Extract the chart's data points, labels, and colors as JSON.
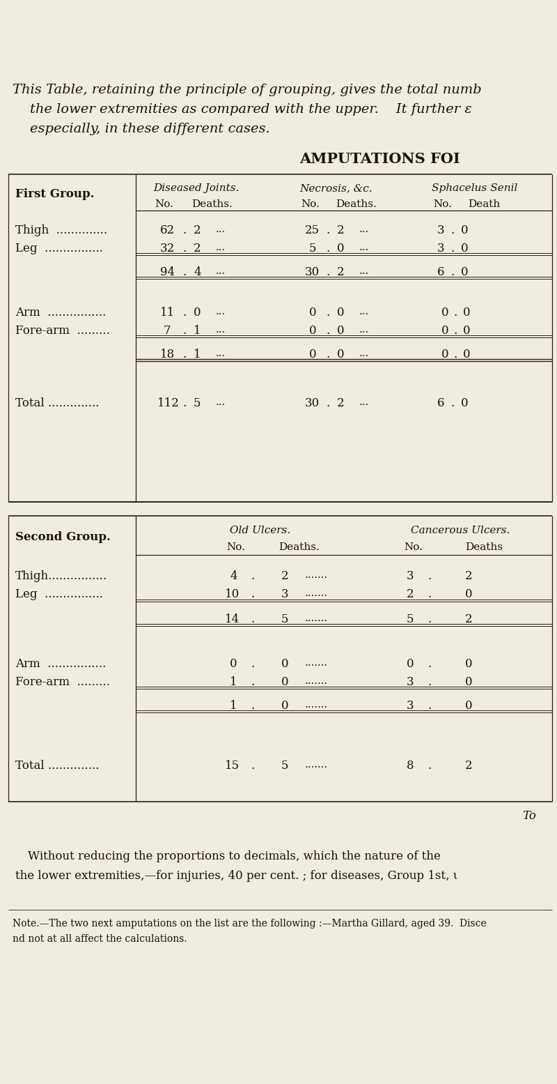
{
  "bg_color": "#f0ece0",
  "text_color": "#1a1208",
  "intro_line1": "This Table, retaining the principle of grouping, gives the total numb",
  "intro_line2": "    the lower extremities as compared with the upper.    It further ε",
  "intro_line3": "    especially, in these different cases.",
  "heading": "AMPUTATIONS FOI",
  "g1_header": "First Group.",
  "g1_col1": "Diseased Joints.",
  "g1_col2": "Necrosis, &c.",
  "g1_col3": "Sphacelus Senil",
  "g1_sub_no": "No.",
  "g1_sub_deaths": "Deaths.",
  "g1_sub_death": "Death",
  "thigh_label": "Thigh  ..............",
  "leg_label": "Leg  ................",
  "arm_label": "Arm  ................",
  "forearm_label": "Fore-arm  .........",
  "total_label": "Total ..............",
  "g2_header": "Second Group.",
  "g2_col1": "Old Ulcers.",
  "g2_col2": "Cancerous Ulcers.",
  "to_text": "To",
  "footer1": "Without reducing the proportions to decimals, which the nature of the",
  "footer2": "the lower extremities,—for injuries, 40 per cent. ; for diseases, Group 1st, ι",
  "note1": "Note.—The two next amputations on the list are the following :—Martha Gillard, aged 39.  Disce",
  "note2": "nd not at all affect the calculations."
}
